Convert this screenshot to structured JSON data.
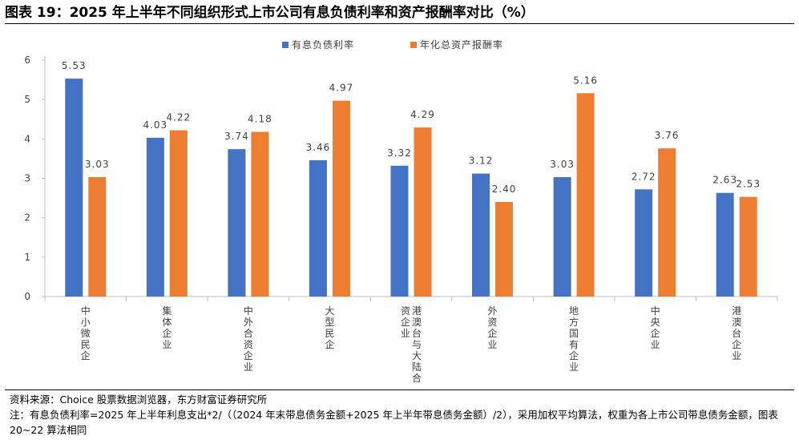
{
  "title": "图表 19：2025 年上半年不同组织形式上市公司有息负债利率和资产报酬率对比（%）",
  "source": "资料来源：Choice 股票数据浏览器，东方财富证券研究所",
  "note": "注：有息负债利率=2025 年上半年利息支出*2/（（2024 年末带息债务金额+2025 年上半年带息债务金额）/2），采用加权平均算法，权重为各上市公司带息债务金额，图表 20~22 算法相同",
  "chart_data": {
    "type": "bar",
    "categories": [
      "中小微民企",
      "集体企业",
      "中外合资企业",
      "大型民企",
      "港澳台与大陆合资企业",
      "外资企业",
      "地方国有企业",
      "中央企业",
      "港澳台企业"
    ],
    "category_lines": [
      [
        "中小微民企"
      ],
      [
        "集体企业"
      ],
      [
        "中外合资企业"
      ],
      [
        "大型民企"
      ],
      [
        "港澳台与大陆合",
        "资企业"
      ],
      [
        "外资企业"
      ],
      [
        "地方国有企业"
      ],
      [
        "中央企业"
      ],
      [
        "港澳台企业"
      ]
    ],
    "series": [
      {
        "name": "有息负债利率",
        "color": "#4472C4",
        "values": [
          5.53,
          4.03,
          3.74,
          3.46,
          3.32,
          3.12,
          3.03,
          2.72,
          2.63
        ]
      },
      {
        "name": "年化总资产报酬率",
        "color": "#ED7D31",
        "values": [
          3.03,
          4.22,
          4.18,
          4.97,
          4.29,
          2.4,
          5.16,
          3.76,
          2.53
        ]
      }
    ],
    "ylim": [
      0,
      6
    ],
    "yticks": [
      "0",
      "1",
      "2",
      "3",
      "4",
      "5",
      "6"
    ],
    "legend": "top-center",
    "grid": false
  }
}
